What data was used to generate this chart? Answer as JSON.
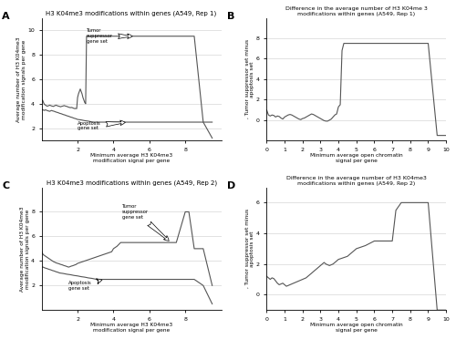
{
  "panel_A": {
    "title": "H3 K04me3 modifications within genes (A549, Rep 1)",
    "xlabel": "Minimum average H3 K04me3\nmodification signal per gene",
    "ylabel": "Average number of H3 K04me3\nmodification signals per gene",
    "label": "A",
    "xlim": [
      0,
      10
    ],
    "ylim": [
      1,
      11
    ],
    "xticks": [
      2,
      4,
      6,
      8
    ],
    "yticks": [
      2,
      4,
      6,
      8,
      10
    ],
    "tumor_x": [
      0.0,
      0.05,
      0.1,
      0.15,
      0.2,
      0.25,
      0.3,
      0.35,
      0.4,
      0.45,
      0.5,
      0.55,
      0.6,
      0.65,
      0.7,
      0.75,
      0.8,
      0.85,
      0.9,
      0.95,
      1.0,
      1.05,
      1.1,
      1.15,
      1.2,
      1.25,
      1.3,
      1.35,
      1.4,
      1.45,
      1.5,
      1.55,
      1.6,
      1.65,
      1.7,
      1.75,
      1.8,
      1.85,
      1.9,
      1.95,
      2.0,
      2.05,
      2.1,
      2.15,
      2.2,
      2.25,
      2.3,
      2.35,
      2.4,
      2.45,
      2.5,
      2.55,
      2.6,
      2.65,
      2.7,
      2.75,
      2.8,
      2.85,
      2.9,
      2.95,
      3.0,
      3.1,
      3.2,
      3.3,
      3.4,
      3.5,
      3.6,
      3.7,
      3.8,
      3.9,
      4.0,
      4.5,
      5.0,
      5.5,
      6.0,
      6.5,
      7.0,
      7.5,
      8.0,
      8.5,
      9.0,
      9.5
    ],
    "tumor_y": [
      4.2,
      4.3,
      4.1,
      3.95,
      3.9,
      3.85,
      3.8,
      3.82,
      3.85,
      3.88,
      3.85,
      3.82,
      3.8,
      3.78,
      3.82,
      3.85,
      3.88,
      3.85,
      3.82,
      3.8,
      3.78,
      3.75,
      3.78,
      3.8,
      3.82,
      3.85,
      3.82,
      3.8,
      3.78,
      3.75,
      3.72,
      3.7,
      3.68,
      3.7,
      3.68,
      3.65,
      3.62,
      3.6,
      3.62,
      3.6,
      4.5,
      4.8,
      5.0,
      5.2,
      5.0,
      4.8,
      4.5,
      4.3,
      4.1,
      4.0,
      9.5,
      9.5,
      9.5,
      9.5,
      9.5,
      9.5,
      9.5,
      9.5,
      9.5,
      9.5,
      9.5,
      9.5,
      9.5,
      9.5,
      9.5,
      9.5,
      9.5,
      9.5,
      9.5,
      9.5,
      9.5,
      9.5,
      9.5,
      9.5,
      9.5,
      9.5,
      9.5,
      9.5,
      9.5,
      9.5,
      2.5,
      2.5
    ],
    "apop_x": [
      0.0,
      0.05,
      0.1,
      0.15,
      0.2,
      0.25,
      0.3,
      0.35,
      0.4,
      0.45,
      0.5,
      0.55,
      0.6,
      0.65,
      0.7,
      0.75,
      0.8,
      0.85,
      0.9,
      0.95,
      1.0,
      1.05,
      1.1,
      1.15,
      1.2,
      1.25,
      1.3,
      1.35,
      1.4,
      1.45,
      1.5,
      1.55,
      1.6,
      1.65,
      1.7,
      1.75,
      1.8,
      1.85,
      1.9,
      1.95,
      2.0,
      2.1,
      2.2,
      2.3,
      2.4,
      2.5,
      2.6,
      2.7,
      2.8,
      2.9,
      3.0,
      3.1,
      3.2,
      3.3,
      3.4,
      3.5,
      3.6,
      3.7,
      3.8,
      3.9,
      4.0,
      4.5,
      5.0,
      5.5,
      6.0,
      6.5,
      7.0,
      7.5,
      8.0,
      8.5,
      9.0,
      9.5
    ],
    "apop_y": [
      3.5,
      3.52,
      3.48,
      3.45,
      3.5,
      3.48,
      3.45,
      3.42,
      3.4,
      3.38,
      3.42,
      3.45,
      3.42,
      3.4,
      3.38,
      3.35,
      3.32,
      3.3,
      3.28,
      3.25,
      3.22,
      3.2,
      3.18,
      3.15,
      3.12,
      3.1,
      3.08,
      3.05,
      3.02,
      3.0,
      2.98,
      2.95,
      2.92,
      2.9,
      2.88,
      2.85,
      2.82,
      2.8,
      2.78,
      2.75,
      2.72,
      2.7,
      2.68,
      2.65,
      2.62,
      2.6,
      2.58,
      2.55,
      2.52,
      2.5,
      2.5,
      2.5,
      2.5,
      2.5,
      2.5,
      2.5,
      2.5,
      2.5,
      2.5,
      2.5,
      2.5,
      2.5,
      2.5,
      2.5,
      2.5,
      2.5,
      2.5,
      2.5,
      2.5,
      2.5,
      2.5,
      1.2
    ]
  },
  "panel_B": {
    "title": "Difference in the average number of H3 K04me 3\nmodifications within genes (A549, Rep 1)",
    "xlabel": "Minimum average open chromatin\nsignal per gene",
    "ylabel": ", Tumor suppressor set minus\napoptosis set",
    "label": "B",
    "xlim": [
      0,
      10
    ],
    "ylim": [
      -2,
      10
    ],
    "xticks": [
      0,
      1,
      2,
      3,
      4,
      5,
      6,
      7,
      8,
      9,
      10
    ],
    "yticks": [
      0,
      2,
      4,
      6,
      8
    ],
    "diff_x": [
      0.0,
      0.1,
      0.2,
      0.3,
      0.4,
      0.5,
      0.6,
      0.7,
      0.8,
      0.9,
      1.0,
      1.1,
      1.2,
      1.3,
      1.4,
      1.5,
      1.6,
      1.7,
      1.8,
      1.9,
      2.0,
      2.1,
      2.2,
      2.3,
      2.4,
      2.5,
      2.6,
      2.7,
      2.8,
      2.9,
      3.0,
      3.1,
      3.2,
      3.3,
      3.4,
      3.5,
      3.6,
      3.7,
      3.8,
      3.9,
      4.0,
      4.1,
      4.2,
      4.3,
      4.4,
      4.5,
      5.0,
      5.5,
      6.0,
      6.5,
      7.0,
      7.5,
      8.0,
      8.5,
      9.0,
      9.5,
      10.0
    ],
    "diff_y": [
      1.0,
      0.5,
      0.4,
      0.5,
      0.45,
      0.3,
      0.4,
      0.35,
      0.2,
      0.1,
      0.3,
      0.4,
      0.5,
      0.55,
      0.5,
      0.4,
      0.3,
      0.2,
      0.1,
      0.05,
      0.15,
      0.2,
      0.3,
      0.4,
      0.5,
      0.6,
      0.55,
      0.45,
      0.35,
      0.25,
      0.15,
      0.05,
      -0.05,
      -0.1,
      -0.1,
      0.0,
      0.1,
      0.3,
      0.5,
      0.6,
      1.3,
      1.5,
      6.8,
      7.5,
      7.5,
      7.5,
      7.5,
      7.5,
      7.5,
      7.5,
      7.5,
      7.5,
      7.5,
      7.5,
      7.5,
      -1.5,
      -1.5
    ]
  },
  "panel_C": {
    "title": "H3 K04me3 modifications within genes (A549, Rep 2)",
    "xlabel": "Minimum average H3 K04me3\nmodification signal per gene",
    "ylabel": "Average number of H3 K04me3\nmodification signals per gene",
    "label": "C",
    "xlim": [
      0,
      10
    ],
    "ylim": [
      0,
      10
    ],
    "xticks": [
      2,
      4,
      6,
      8
    ],
    "yticks": [
      2,
      4,
      6,
      8
    ],
    "tumor_x": [
      0.0,
      0.05,
      0.1,
      0.15,
      0.2,
      0.25,
      0.3,
      0.35,
      0.4,
      0.45,
      0.5,
      0.55,
      0.6,
      0.65,
      0.7,
      0.75,
      0.8,
      0.85,
      0.9,
      0.95,
      1.0,
      1.05,
      1.1,
      1.15,
      1.2,
      1.25,
      1.3,
      1.35,
      1.4,
      1.45,
      1.5,
      1.55,
      1.6,
      1.65,
      1.7,
      1.75,
      1.8,
      1.85,
      1.9,
      1.95,
      2.0,
      2.1,
      2.2,
      2.3,
      2.4,
      2.5,
      2.6,
      2.7,
      2.8,
      2.9,
      3.0,
      3.1,
      3.2,
      3.3,
      3.4,
      3.5,
      3.6,
      3.7,
      3.8,
      3.9,
      4.0,
      4.2,
      4.4,
      4.6,
      4.8,
      5.0,
      5.5,
      6.0,
      6.5,
      7.0,
      7.5,
      8.0,
      8.2,
      8.5,
      9.0,
      9.5
    ],
    "tumor_y": [
      4.8,
      4.6,
      4.5,
      4.45,
      4.4,
      4.35,
      4.3,
      4.25,
      4.2,
      4.15,
      4.1,
      4.05,
      4.0,
      3.95,
      3.92,
      3.88,
      3.85,
      3.82,
      3.8,
      3.78,
      3.75,
      3.72,
      3.7,
      3.68,
      3.65,
      3.62,
      3.6,
      3.58,
      3.55,
      3.52,
      3.5,
      3.52,
      3.55,
      3.58,
      3.6,
      3.62,
      3.65,
      3.68,
      3.7,
      3.75,
      3.8,
      3.85,
      3.9,
      3.95,
      4.0,
      4.05,
      4.1,
      4.15,
      4.2,
      4.25,
      4.3,
      4.35,
      4.4,
      4.45,
      4.5,
      4.55,
      4.6,
      4.65,
      4.7,
      4.75,
      5.0,
      5.2,
      5.5,
      5.5,
      5.5,
      5.5,
      5.5,
      5.5,
      5.5,
      5.5,
      5.5,
      8.0,
      8.0,
      5.0,
      5.0,
      2.0
    ],
    "apop_x": [
      0.0,
      0.05,
      0.1,
      0.15,
      0.2,
      0.25,
      0.3,
      0.35,
      0.4,
      0.45,
      0.5,
      0.55,
      0.6,
      0.65,
      0.7,
      0.75,
      0.8,
      0.85,
      0.9,
      0.95,
      1.0,
      1.1,
      1.2,
      1.3,
      1.4,
      1.5,
      1.6,
      1.7,
      1.8,
      1.9,
      2.0,
      2.1,
      2.2,
      2.3,
      2.4,
      2.5,
      2.6,
      2.7,
      2.8,
      2.9,
      3.0,
      3.1,
      3.2,
      3.3,
      3.4,
      3.5,
      3.6,
      3.7,
      3.8,
      3.9,
      4.0,
      4.5,
      5.0,
      5.5,
      6.0,
      6.5,
      7.0,
      7.5,
      8.0,
      8.5,
      9.0,
      9.5
    ],
    "apop_y": [
      3.5,
      3.52,
      3.48,
      3.45,
      3.42,
      3.4,
      3.38,
      3.35,
      3.32,
      3.3,
      3.28,
      3.25,
      3.22,
      3.2,
      3.18,
      3.15,
      3.12,
      3.1,
      3.08,
      3.05,
      3.02,
      3.0,
      2.98,
      2.95,
      2.92,
      2.9,
      2.88,
      2.85,
      2.82,
      2.8,
      2.78,
      2.75,
      2.72,
      2.7,
      2.68,
      2.65,
      2.62,
      2.6,
      2.58,
      2.55,
      2.52,
      2.5,
      2.5,
      2.5,
      2.5,
      2.5,
      2.5,
      2.5,
      2.5,
      2.5,
      2.5,
      2.5,
      2.5,
      2.5,
      2.5,
      2.5,
      2.5,
      2.5,
      2.5,
      2.5,
      2.0,
      0.5
    ]
  },
  "panel_D": {
    "title": "Difference in the average number of H3 K04me3\nmodifications within genes (A549, Rep 2)",
    "xlabel": "Minimum average open chromatin\nsignal per gene",
    "ylabel": ", Tumor suppressor set minus\napoptosis set",
    "label": "D",
    "xlim": [
      0,
      10
    ],
    "ylim": [
      -1,
      7
    ],
    "xticks": [
      0,
      1,
      2,
      3,
      4,
      5,
      6,
      7,
      8,
      9,
      10
    ],
    "yticks": [
      0,
      2,
      4,
      6
    ],
    "diff_x": [
      0.0,
      0.1,
      0.2,
      0.3,
      0.4,
      0.5,
      0.6,
      0.7,
      0.8,
      0.9,
      1.0,
      1.1,
      1.2,
      1.3,
      1.4,
      1.5,
      1.6,
      1.7,
      1.8,
      1.9,
      2.0,
      2.1,
      2.2,
      2.3,
      2.4,
      2.5,
      2.6,
      2.7,
      2.8,
      2.9,
      3.0,
      3.1,
      3.2,
      3.3,
      3.4,
      3.5,
      3.6,
      3.7,
      3.8,
      3.9,
      4.0,
      4.5,
      5.0,
      5.5,
      6.0,
      6.5,
      7.0,
      7.2,
      7.5,
      8.0,
      8.5,
      9.0,
      9.5,
      10.0
    ],
    "diff_y": [
      1.2,
      1.1,
      1.0,
      1.1,
      1.05,
      0.9,
      0.75,
      0.65,
      0.7,
      0.75,
      0.65,
      0.55,
      0.6,
      0.65,
      0.7,
      0.75,
      0.8,
      0.85,
      0.9,
      0.95,
      1.0,
      1.05,
      1.1,
      1.2,
      1.3,
      1.4,
      1.5,
      1.6,
      1.7,
      1.8,
      1.9,
      2.0,
      2.1,
      2.0,
      1.95,
      1.9,
      1.95,
      2.0,
      2.1,
      2.2,
      2.3,
      2.5,
      3.0,
      3.2,
      3.5,
      3.5,
      3.5,
      5.5,
      6.0,
      6.0,
      6.0,
      6.0,
      -1.0,
      -1.0
    ]
  },
  "line_color": "#555555",
  "background_color": "#ffffff",
  "grid_color": "#cccccc"
}
